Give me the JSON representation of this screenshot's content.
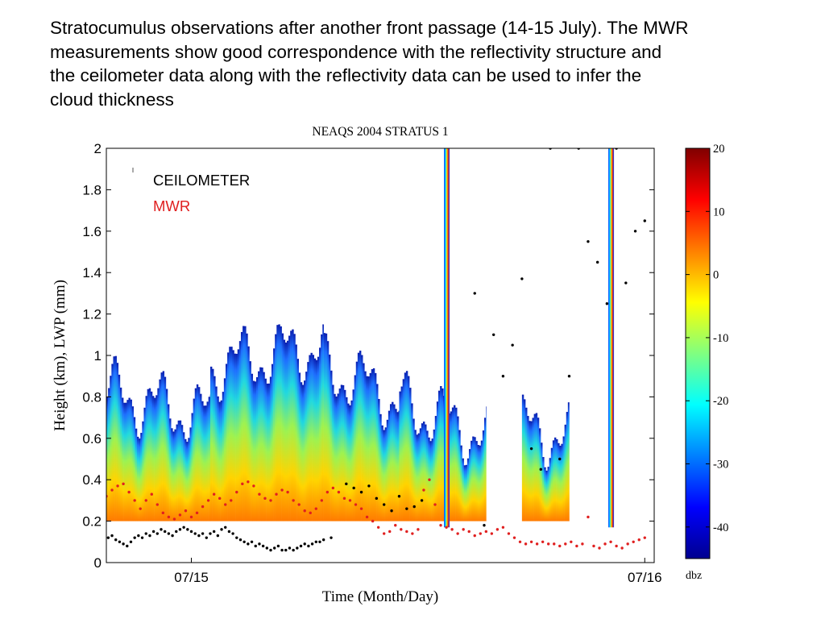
{
  "caption": {
    "lines": [
      "Stratocumulus observations after another front passage (14-15 July). The MWR",
      "measurements show good correspondence with the reflectivity structure and",
      "the ceilometer data along with the reflectivity data can be used to infer the",
      "cloud thickness"
    ]
  },
  "chart_data": {
    "type": "heatmap",
    "title": "NEAQS 2004 STRATUS 1",
    "xlabel": "Time (Month/Day)",
    "ylabel": "Height (km), LWP (mm)",
    "x_ticks": [
      "07/15",
      "07/16"
    ],
    "y_ticks": [
      "0",
      "0.2",
      "0.4",
      "0.6",
      "0.8",
      "1",
      "1.2",
      "1.4",
      "1.6",
      "1.8",
      "2"
    ],
    "ylim": [
      0,
      2
    ],
    "xlim_hours": [
      -4.5,
      24.5
    ],
    "x_unit_note": "hours relative to 07/15 00:00",
    "legend": {
      "position": "top-left",
      "entries": [
        {
          "name": "CEILOMETER",
          "color": "#000000"
        },
        {
          "name": "MWR",
          "color": "#e02020"
        }
      ]
    },
    "colorbar": {
      "label": "dbz",
      "range": [
        -45,
        20
      ],
      "ticks": [
        "20",
        "10",
        "0",
        "-10",
        "-20",
        "-30",
        "-40"
      ],
      "colormap": "jet"
    },
    "reflectivity_min_height_km": 0.2,
    "reflectivity_segments": [
      {
        "t0": -4.5,
        "t1": 1.0,
        "top_start": 0.82,
        "top_end": 0.7,
        "base": 0.2
      },
      {
        "t0": 1.0,
        "t1": 7.0,
        "top_start": 0.95,
        "top_end": 1.05,
        "base": 0.2
      },
      {
        "t0": 7.0,
        "t1": 11.0,
        "top_start": 0.95,
        "top_end": 0.78,
        "base": 0.2
      },
      {
        "t0": 11.0,
        "t1": 15.6,
        "top_start": 0.78,
        "top_end": 0.6,
        "base": 0.2
      },
      {
        "t0": 17.5,
        "t1": 20.0,
        "top_start": 0.65,
        "top_end": 0.6,
        "base": 0.2
      }
    ],
    "rain_columns_hours": [
      13.5,
      22.2
    ],
    "series": [
      {
        "name": "CEILOMETER",
        "color": "#000000",
        "x": [
          -4.4,
          -4.2,
          -4.0,
          -3.8,
          -3.6,
          -3.4,
          -3.2,
          -3.0,
          -2.8,
          -2.6,
          -2.4,
          -2.2,
          -2.0,
          -1.8,
          -1.6,
          -1.4,
          -1.2,
          -1.0,
          -0.8,
          -0.6,
          -0.4,
          -0.2,
          0.0,
          0.2,
          0.4,
          0.6,
          0.8,
          1.0,
          1.2,
          1.4,
          1.6,
          1.8,
          2.0,
          2.2,
          2.4,
          2.6,
          2.8,
          3.0,
          3.2,
          3.4,
          3.6,
          3.8,
          4.0,
          4.2,
          4.4,
          4.6,
          4.8,
          5.0,
          5.2,
          5.4,
          5.6,
          5.8,
          6.0,
          6.2,
          6.4,
          6.6,
          6.8,
          7.0,
          7.4,
          8.2,
          8.6,
          9.0,
          9.4,
          9.8,
          10.2,
          10.6,
          11.0,
          11.4,
          11.8,
          12.2,
          15.0,
          15.5,
          16.0,
          16.5,
          17.0,
          17.5,
          18.0,
          18.5,
          19.0,
          19.5,
          20.0,
          20.5,
          21.0,
          21.5,
          22.0,
          22.5,
          23.0,
          23.5,
          24.0
        ],
        "y": [
          0.12,
          0.13,
          0.11,
          0.1,
          0.09,
          0.08,
          0.1,
          0.12,
          0.13,
          0.12,
          0.14,
          0.13,
          0.15,
          0.14,
          0.16,
          0.15,
          0.14,
          0.13,
          0.15,
          0.16,
          0.17,
          0.16,
          0.15,
          0.14,
          0.13,
          0.14,
          0.12,
          0.14,
          0.15,
          0.13,
          0.16,
          0.17,
          0.15,
          0.14,
          0.12,
          0.11,
          0.1,
          0.09,
          0.1,
          0.08,
          0.09,
          0.08,
          0.07,
          0.06,
          0.07,
          0.08,
          0.06,
          0.06,
          0.07,
          0.06,
          0.07,
          0.08,
          0.09,
          0.08,
          0.09,
          0.1,
          0.1,
          0.11,
          0.12,
          0.38,
          0.36,
          0.34,
          0.37,
          0.31,
          0.28,
          0.25,
          0.32,
          0.26,
          0.27,
          0.3,
          1.3,
          0.18,
          1.1,
          0.9,
          1.05,
          1.37,
          0.55,
          0.45,
          2.0,
          0.5,
          0.9,
          2.0,
          1.55,
          1.45,
          1.25,
          2.0,
          1.35,
          1.6,
          1.65
        ]
      },
      {
        "name": "MWR",
        "color": "#e02020",
        "x": [
          -4.5,
          -4.2,
          -3.9,
          -3.6,
          -3.3,
          -3.0,
          -2.7,
          -2.4,
          -2.1,
          -1.8,
          -1.5,
          -1.2,
          -0.9,
          -0.6,
          -0.3,
          0.0,
          0.3,
          0.6,
          0.9,
          1.2,
          1.5,
          1.8,
          2.1,
          2.4,
          2.7,
          3.0,
          3.3,
          3.6,
          3.9,
          4.2,
          4.5,
          4.8,
          5.1,
          5.4,
          5.7,
          6.0,
          6.3,
          6.6,
          6.9,
          7.2,
          7.5,
          7.8,
          8.1,
          8.4,
          8.7,
          9.0,
          9.3,
          9.6,
          9.9,
          10.2,
          10.5,
          10.8,
          11.1,
          11.4,
          11.7,
          12.0,
          12.3,
          12.6,
          12.9,
          13.2,
          13.5,
          13.8,
          14.1,
          14.4,
          14.7,
          15.0,
          15.3,
          15.6,
          15.9,
          16.2,
          16.5,
          16.8,
          17.1,
          17.4,
          17.7,
          18.0,
          18.3,
          18.6,
          18.9,
          19.2,
          19.5,
          19.8,
          20.1,
          20.4,
          20.7,
          21.0,
          21.3,
          21.6,
          21.9,
          22.2,
          22.5,
          22.8,
          23.1,
          23.4,
          23.7,
          24.0
        ],
        "y": [
          0.32,
          0.35,
          0.37,
          0.38,
          0.34,
          0.3,
          0.26,
          0.3,
          0.33,
          0.28,
          0.24,
          0.22,
          0.21,
          0.23,
          0.25,
          0.22,
          0.24,
          0.27,
          0.3,
          0.33,
          0.31,
          0.28,
          0.3,
          0.34,
          0.38,
          0.39,
          0.37,
          0.33,
          0.31,
          0.3,
          0.33,
          0.35,
          0.34,
          0.3,
          0.28,
          0.25,
          0.24,
          0.26,
          0.3,
          0.34,
          0.36,
          0.34,
          0.31,
          0.3,
          0.28,
          0.26,
          0.22,
          0.2,
          0.17,
          0.14,
          0.15,
          0.18,
          0.16,
          0.15,
          0.14,
          0.16,
          0.35,
          0.4,
          0.28,
          0.18,
          0.17,
          0.16,
          0.14,
          0.16,
          0.15,
          0.13,
          0.14,
          0.15,
          0.14,
          0.16,
          0.17,
          0.14,
          0.12,
          0.1,
          0.09,
          0.1,
          0.09,
          0.1,
          0.09,
          0.09,
          0.08,
          0.09,
          0.1,
          0.08,
          0.09,
          0.22,
          0.08,
          0.07,
          0.09,
          0.1,
          0.08,
          0.07,
          0.09,
          0.1,
          0.11,
          0.12
        ]
      }
    ]
  }
}
